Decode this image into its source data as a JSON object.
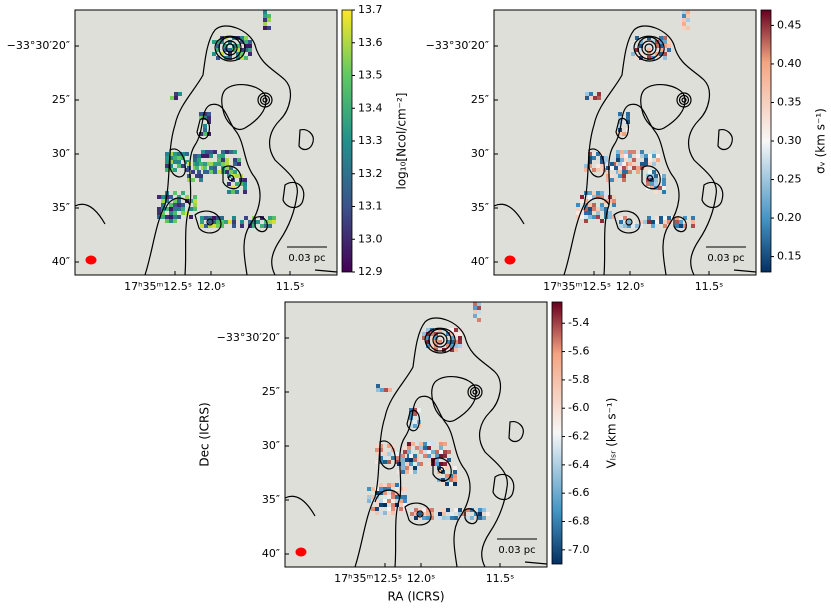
{
  "chart_data": [
    {
      "type": "map",
      "xticks": [
        "17ʰ35ᵐ12.5ˢ",
        "12.0ˢ",
        "11.5ˢ"
      ],
      "yticks": [
        "−33°30′20″",
        "25″",
        "30″",
        "35″",
        "40″"
      ],
      "scale_bar": "0.03 pc",
      "colorbar_label": "log₁₀[Ncol/cm⁻²]",
      "clim": [
        12.9,
        13.7
      ],
      "cticks": [
        12.9,
        {
          "value": 13.0,
          "label": "13.0"
        },
        13.1,
        13.2,
        13.3,
        13.4,
        13.5,
        13.6,
        13.7
      ]
    },
    {
      "type": "map",
      "xticks": [
        "17ʰ35ᵐ12.5ˢ",
        "12.0ˢ",
        "11.5ˢ"
      ],
      "yticks": [
        "−33°30′20″",
        "25″",
        "30″",
        "35″",
        "40″"
      ],
      "scale_bar": "0.03 pc",
      "colorbar_label": "σᵥ (km s⁻¹)",
      "clim": [
        0.13,
        0.47
      ],
      "cticks": [
        0.15,
        {
          "value": 0.2,
          "label": "0.20"
        },
        0.25,
        {
          "value": 0.3,
          "label": "0.30"
        },
        0.35,
        {
          "value": 0.4,
          "label": "0.40"
        },
        0.45
      ]
    },
    {
      "type": "map",
      "xticks": [
        "17ʰ35ᵐ12.5ˢ",
        "12.0ˢ",
        "11.5ˢ"
      ],
      "yticks": [
        "−33°30′20″",
        "25″",
        "30″",
        "35″",
        "40″"
      ],
      "scale_bar": "0.03 pc",
      "colorbar_label": "Vₗₛᵣ (km s⁻¹)",
      "xlabel": "RA (ICRS)",
      "ylabel": "Dec (ICRS)",
      "clim": [
        -7.1,
        -5.25
      ],
      "cticks": [
        -5.4,
        -5.6,
        -5.8,
        {
          "value": -6.0,
          "label": "-6.0"
        },
        -6.2,
        -6.4,
        -6.6,
        -6.8,
        {
          "value": -7.0,
          "label": "-7.0"
        }
      ]
    }
  ]
}
